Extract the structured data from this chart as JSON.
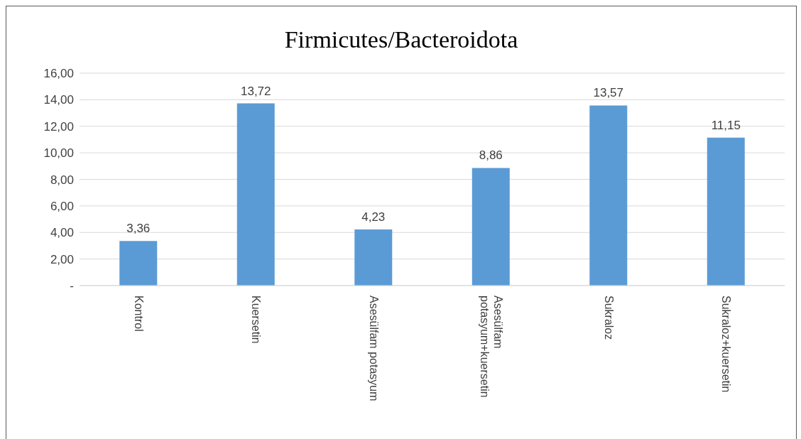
{
  "chart_data": {
    "type": "bar",
    "title": "Firmicutes/Bacteroidota",
    "categories": [
      "Kontrol",
      "Kuersetin",
      "Asesülfam potasyum",
      "Asesülfam potasyum+kuersetin",
      "Sukraloz",
      "Sukraloz+kuersetin"
    ],
    "values": [
      3.36,
      13.72,
      4.23,
      8.86,
      13.57,
      11.15
    ],
    "value_labels": [
      "3,36",
      "13,72",
      "4,23",
      "8,86",
      "13,57",
      "11,15"
    ],
    "color": "#5b9bd5",
    "ylim": [
      0,
      16
    ],
    "yticks": [
      {
        "value": 0,
        "label": "-"
      },
      {
        "value": 2,
        "label": "2,00"
      },
      {
        "value": 4,
        "label": "4,00"
      },
      {
        "value": 6,
        "label": "6,00"
      },
      {
        "value": 8,
        "label": "8,00"
      },
      {
        "value": 10,
        "label": "10,00"
      },
      {
        "value": 12,
        "label": "12,00"
      },
      {
        "value": 14,
        "label": "14,00"
      },
      {
        "value": 16,
        "label": "16,00"
      }
    ],
    "grid": "y",
    "legend": false
  }
}
